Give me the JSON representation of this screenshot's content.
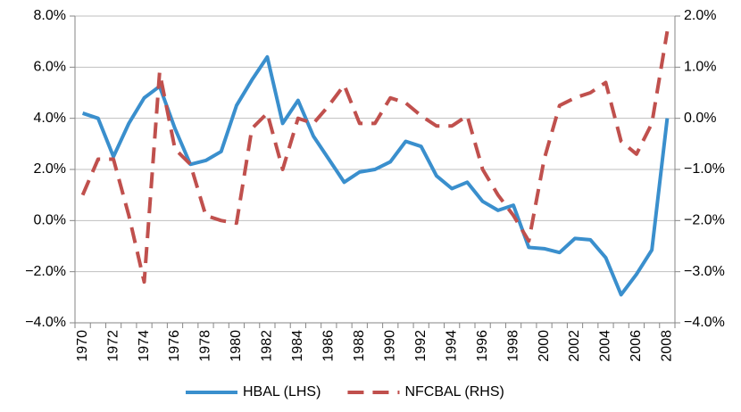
{
  "chart_data": {
    "type": "line",
    "categories": [
      "1970",
      "1971",
      "1972",
      "1973",
      "1974",
      "1975",
      "1976",
      "1977",
      "1978",
      "1979",
      "1980",
      "1981",
      "1982",
      "1983",
      "1984",
      "1985",
      "1986",
      "1987",
      "1988",
      "1989",
      "1990",
      "1991",
      "1992",
      "1993",
      "1994",
      "1995",
      "1996",
      "1997",
      "1998",
      "1999",
      "2000",
      "2001",
      "2002",
      "2003",
      "2004",
      "2005",
      "2006",
      "2007",
      "2008"
    ],
    "series": [
      {
        "name": "HBAL (LHS)",
        "color": "#3a8fcd",
        "axis": "y",
        "dash": "solid",
        "values": [
          4.2,
          4.0,
          2.5,
          3.8,
          4.8,
          5.25,
          3.6,
          2.2,
          2.35,
          2.7,
          4.5,
          5.5,
          6.4,
          3.8,
          4.7,
          3.3,
          2.4,
          1.5,
          1.9,
          2.0,
          2.3,
          3.1,
          2.9,
          1.75,
          1.25,
          1.5,
          0.75,
          0.4,
          0.6,
          -1.05,
          -1.1,
          -1.25,
          -0.7,
          -0.75,
          -1.45,
          -2.9,
          -2.1,
          -1.15,
          4.0
        ]
      },
      {
        "name": "NFCBAL (RHS)",
        "color": "#c0504d",
        "axis": "y2",
        "dash": "dashed",
        "values": [
          -1.5,
          -0.8,
          -0.8,
          -1.9,
          -3.2,
          0.9,
          -0.6,
          -0.9,
          -1.9,
          -2.0,
          -2.05,
          -0.2,
          0.1,
          -1.0,
          0.0,
          -0.1,
          0.25,
          0.65,
          -0.1,
          -0.1,
          0.4,
          0.3,
          0.05,
          -0.15,
          -0.15,
          0.05,
          -1.0,
          -1.5,
          -1.9,
          -2.4,
          -0.8,
          0.25,
          0.4,
          0.5,
          0.7,
          -0.45,
          -0.7,
          -0.1,
          1.7
        ]
      }
    ],
    "ylim": [
      -4,
      8
    ],
    "yticks": [
      {
        "value": -4,
        "label": "−4.0%"
      },
      {
        "value": -2,
        "label": "−2.0%"
      },
      {
        "value": 0,
        "label": "0.0%"
      },
      {
        "value": 2,
        "label": "2.0%"
      },
      {
        "value": 4,
        "label": "4.0%"
      },
      {
        "value": 6,
        "label": "6.0%"
      },
      {
        "value": 8,
        "label": "8.0%"
      }
    ],
    "y2lim": [
      -4,
      2
    ],
    "y2ticks": [
      {
        "value": -4,
        "label": "−4.0%"
      },
      {
        "value": -3,
        "label": "−3.0%"
      },
      {
        "value": -2,
        "label": "−2.0%"
      },
      {
        "value": -1,
        "label": "−1.0%"
      },
      {
        "value": 0,
        "label": "0.0%"
      },
      {
        "value": 1,
        "label": "1.0%"
      },
      {
        "value": 2,
        "label": "2.0%"
      }
    ],
    "grid": true,
    "legend": "bottom"
  }
}
